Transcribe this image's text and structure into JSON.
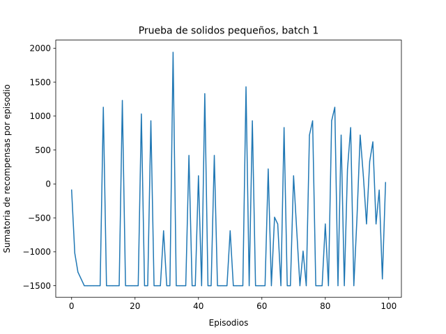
{
  "chart_data": {
    "type": "line",
    "title": "Prueba de solidos pequeños, batch 1",
    "xlabel": "Episodios",
    "ylabel": "Sumatoria de recompensas por episodio",
    "xlim": [
      -5,
      104
    ],
    "ylim": [
      -1670,
      2120
    ],
    "xticks": [
      0,
      20,
      40,
      60,
      80,
      100
    ],
    "yticks": [
      -1500,
      -1000,
      -500,
      0,
      500,
      1000,
      1500,
      2000
    ],
    "ytick_labels": [
      "−1500",
      "−1000",
      "−500",
      "0",
      "500",
      "1000",
      "1500",
      "2000"
    ],
    "grid": false,
    "series": [
      {
        "color": "#1f77b4",
        "x": [
          0,
          1,
          2,
          3,
          4,
          5,
          6,
          7,
          8,
          9,
          10,
          11,
          12,
          13,
          14,
          15,
          16,
          17,
          18,
          19,
          20,
          21,
          22,
          23,
          24,
          25,
          26,
          27,
          28,
          29,
          30,
          31,
          32,
          33,
          34,
          35,
          36,
          37,
          38,
          39,
          40,
          41,
          42,
          43,
          44,
          45,
          46,
          47,
          48,
          49,
          50,
          51,
          52,
          53,
          54,
          55,
          56,
          57,
          58,
          59,
          60,
          61,
          62,
          63,
          64,
          65,
          66,
          67,
          68,
          69,
          70,
          71,
          72,
          73,
          74,
          75,
          76,
          77,
          78,
          79,
          80,
          81,
          82,
          83,
          84,
          85,
          86,
          87,
          88,
          89,
          90,
          91,
          92,
          93,
          94,
          95,
          96,
          97,
          98,
          99
        ],
        "y": [
          -90,
          -1020,
          -1300,
          -1400,
          -1500,
          -1500,
          -1500,
          -1500,
          -1500,
          -1500,
          1130,
          -1500,
          -1500,
          -1500,
          -1500,
          -1500,
          1230,
          -1500,
          -1500,
          -1500,
          -1500,
          -1500,
          1030,
          -1500,
          -1500,
          930,
          -1500,
          -1500,
          -1500,
          -690,
          -1500,
          -1500,
          1940,
          -1500,
          -1500,
          -1500,
          -1500,
          420,
          -1500,
          -1500,
          120,
          -1500,
          1330,
          -1500,
          -1500,
          420,
          -1500,
          -1500,
          -1500,
          -1500,
          -690,
          -1500,
          -1500,
          -1500,
          -1500,
          1430,
          -1500,
          930,
          -1500,
          -1500,
          -1500,
          -1500,
          220,
          -1500,
          -490,
          -590,
          -1500,
          830,
          -1500,
          -1500,
          120,
          -690,
          -1500,
          -990,
          -1500,
          720,
          930,
          -1500,
          -1500,
          -1500,
          -590,
          -1500,
          930,
          1130,
          -1500,
          720,
          -1500,
          220,
          830,
          -1500,
          -490,
          720,
          120,
          -590,
          330,
          620,
          -590,
          -90,
          -1400,
          20
        ]
      }
    ]
  }
}
